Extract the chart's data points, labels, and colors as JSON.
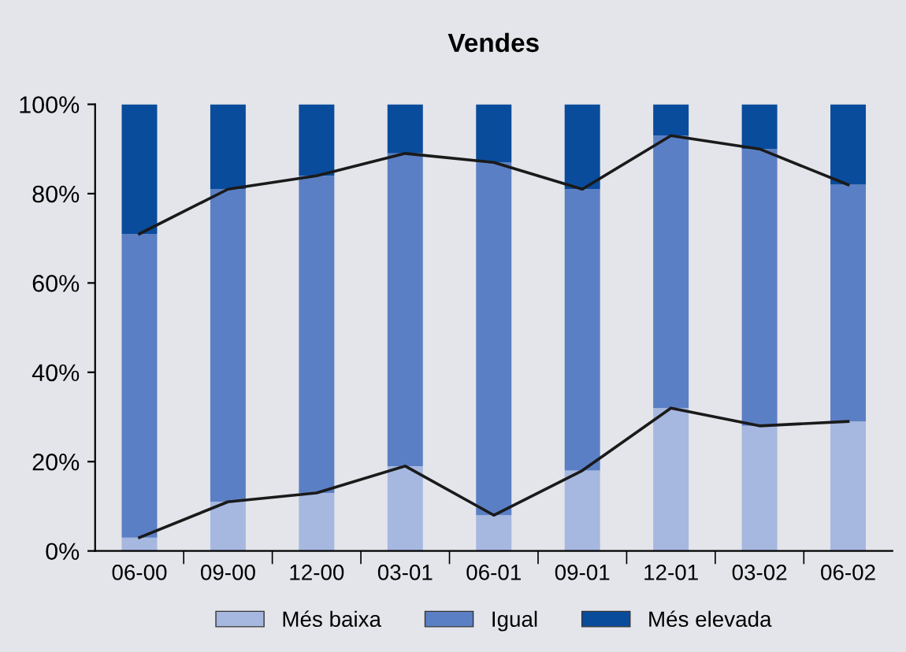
{
  "chart_data": {
    "type": "bar",
    "title": "Vendes",
    "stacked": true,
    "categories": [
      "06-00",
      "09-00",
      "12-00",
      "03-01",
      "06-01",
      "09-01",
      "12-01",
      "03-02",
      "06-02"
    ],
    "series": [
      {
        "name": "Més baixa",
        "color": "#a6b8e0",
        "values": [
          3,
          11,
          13,
          19,
          8,
          18,
          32,
          28,
          29
        ]
      },
      {
        "name": "Igual",
        "color": "#5b7fc4",
        "values": [
          68,
          70,
          71,
          70,
          79,
          63,
          61,
          62,
          53
        ]
      },
      {
        "name": "Més elevada",
        "color": "#0a4c9c",
        "values": [
          29,
          19,
          16,
          11,
          13,
          19,
          7,
          10,
          18
        ]
      },
      {
        "type": "line",
        "color": "#1a1a1a",
        "values": [
          3,
          11,
          13,
          19,
          8,
          18,
          32,
          28,
          29
        ]
      },
      {
        "type": "line",
        "color": "#1a1a1a",
        "values": [
          71,
          81,
          84,
          89,
          87,
          81,
          93,
          90,
          82
        ]
      }
    ],
    "ylim": [
      0,
      100
    ],
    "yticks": [
      {
        "value": 0,
        "label": "0%"
      },
      {
        "value": 20,
        "label": "20%"
      },
      {
        "value": 40,
        "label": "40%"
      },
      {
        "value": 60,
        "label": "60%"
      },
      {
        "value": 80,
        "label": "80%"
      },
      {
        "value": 100,
        "label": "100%"
      }
    ],
    "grid": false,
    "legend": "bottom",
    "marker": "none",
    "line_style": "solid"
  }
}
